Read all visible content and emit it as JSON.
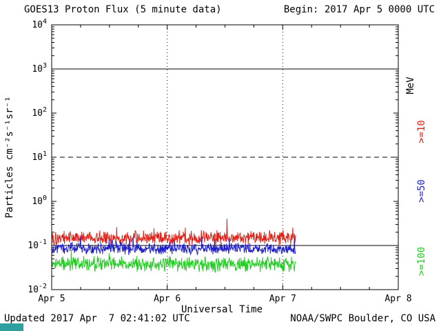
{
  "header": {
    "title": "GOES13 Proton Flux (5 minute data)",
    "begin": "Begin: 2017 Apr 5 0000 UTC"
  },
  "footer": {
    "updated": "Updated 2017 Apr  7 02:41:02 UTC",
    "source": "NOAA/SWPC Boulder, CO USA"
  },
  "chart_data": {
    "type": "line",
    "title": "GOES13 Proton Flux (5 minute data)",
    "xlabel": "Universal Time",
    "ylabel": "Particles cm⁻²s⁻¹sr⁻¹",
    "y_scale": "log10",
    "y_log_range": [
      -2,
      4
    ],
    "y_ticks": [
      {
        "exp": 4,
        "label": "10⁴"
      },
      {
        "exp": 3,
        "label": "10³"
      },
      {
        "exp": 2,
        "label": "10²"
      },
      {
        "exp": 1,
        "label": "10¹"
      },
      {
        "exp": 0,
        "label": "10⁰"
      },
      {
        "exp": -1,
        "label": "10⁻¹"
      },
      {
        "exp": -2,
        "label": "10⁻²"
      }
    ],
    "x_span_days": 3,
    "x_ticks": [
      {
        "day": 0,
        "label": "Apr 5"
      },
      {
        "day": 1,
        "label": "Apr 6"
      },
      {
        "day": 2,
        "label": "Apr 7"
      },
      {
        "day": 3,
        "label": "Apr 8"
      }
    ],
    "gridlines": {
      "horizontal": [
        {
          "exp": 3,
          "style": "solid"
        },
        {
          "exp": 1,
          "style": "dashed"
        },
        {
          "exp": -1,
          "style": "solid"
        }
      ],
      "vertical_days": [
        1,
        2
      ]
    },
    "right_axis": {
      "unit": "MeV"
    },
    "data_span_days": 2.11,
    "points_per_day": 288,
    "series": [
      {
        "id": "ge10",
        "label": ">=10",
        "name": "Protons >=10 MeV",
        "color": "#e02016",
        "approx_mean_flux": 0.15,
        "log10_base": -0.83,
        "log10_spread": 0.2,
        "spike_prob": 0.03,
        "spike_amp": 0.3,
        "seed": 101
      },
      {
        "id": "ge50",
        "label": ">=50",
        "name": "Protons >=50 MeV",
        "color": "#1e1ec8",
        "approx_mean_flux": 0.085,
        "log10_base": -1.07,
        "log10_spread": 0.15,
        "spike_prob": 0.03,
        "spike_amp": 0.28,
        "seed": 202
      },
      {
        "id": "ge100",
        "label": ">=100",
        "name": "Protons >=100 MeV",
        "color": "#22cc22",
        "approx_mean_flux": 0.038,
        "log10_base": -1.42,
        "log10_spread": 0.2,
        "spike_prob": 0.02,
        "spike_amp": 0.25,
        "seed": 303
      }
    ],
    "colors": {
      "axis": "#000000",
      "background": "#ffffff",
      "page_strip": "#2f9e9e"
    }
  }
}
